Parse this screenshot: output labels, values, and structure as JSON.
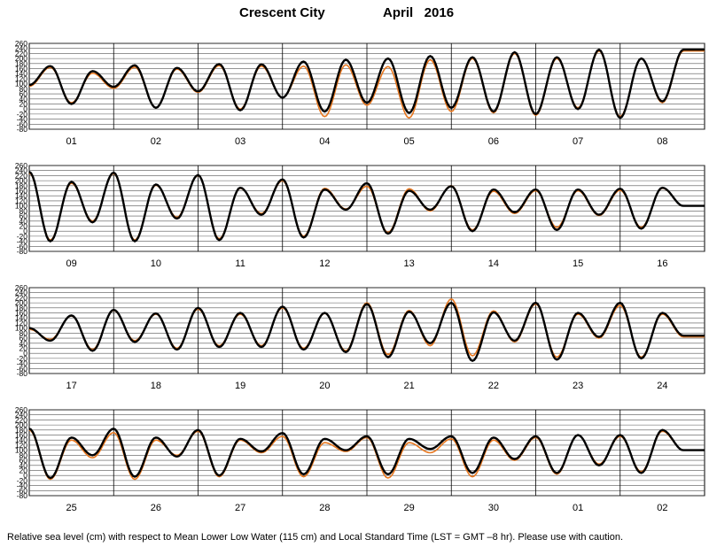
{
  "header": {
    "station": "Crescent City",
    "month_year": "April   2016"
  },
  "footer": {
    "note": "Relative sea level (cm) with respect to Mean Lower Low Water (115 cm) and Local Standard Time (LST = GMT –8 hr). Please use with caution."
  },
  "colors": {
    "observed": "#000000",
    "predicted": "#e87820"
  },
  "chart_data": {
    "type": "line",
    "title": "Crescent City April 2016",
    "ylim": [
      -80,
      260
    ],
    "ytick_values": [
      -80,
      -60,
      -40,
      -20,
      0,
      20,
      40,
      60,
      80,
      100,
      120,
      140,
      160,
      180,
      200,
      220,
      240,
      260
    ],
    "ytick_labels": [
      "-80",
      "-60",
      "-40",
      "-20",
      "0",
      "20",
      "40",
      "60",
      "80",
      "100",
      "120",
      "140",
      "160",
      "180",
      "200",
      "220",
      "240",
      "260"
    ],
    "x_unit": "day",
    "series": [],
    "panels": [
      {
        "day_labels": [
          "01",
          "02",
          "03",
          "04",
          "05",
          "06",
          "07",
          "08"
        ],
        "extrema_obs": [
          95,
          170,
          20,
          150,
          88,
          173,
          5,
          163,
          70,
          178,
          -5,
          177,
          45,
          188,
          -10,
          195,
          25,
          200,
          -15,
          210,
          5,
          205,
          -10,
          225,
          -20,
          205,
          0,
          235,
          -35,
          200,
          30,
          235
        ],
        "extrema_pred": [
          90,
          165,
          25,
          142,
          82,
          166,
          5,
          158,
          66,
          172,
          0,
          170,
          45,
          170,
          -30,
          175,
          15,
          168,
          -35,
          195,
          -10,
          200,
          -15,
          220,
          -25,
          200,
          5,
          230,
          -30,
          200,
          25,
          230
        ]
      },
      {
        "day_labels": [
          "09",
          "10",
          "11",
          "12",
          "13",
          "14",
          "15",
          "16"
        ],
        "extrema_obs": [
          235,
          -40,
          195,
          35,
          232,
          -40,
          185,
          50,
          222,
          -35,
          172,
          65,
          205,
          -25,
          165,
          85,
          190,
          -10,
          160,
          85,
          178,
          0,
          165,
          75,
          165,
          5,
          165,
          65,
          168,
          10,
          172,
          100
        ],
        "extrema_pred": [
          230,
          -35,
          190,
          40,
          228,
          -35,
          182,
          55,
          220,
          -30,
          170,
          70,
          200,
          -20,
          170,
          88,
          178,
          -5,
          168,
          80,
          180,
          5,
          158,
          70,
          160,
          15,
          160,
          62,
          162,
          15,
          170,
          100
        ]
      },
      {
        "day_labels": [
          "17",
          "18",
          "19",
          "20",
          "21",
          "22",
          "23",
          "24"
        ],
        "extrema_obs": [
          100,
          50,
          150,
          10,
          172,
          45,
          158,
          15,
          180,
          25,
          160,
          25,
          185,
          15,
          160,
          5,
          195,
          -15,
          165,
          40,
          200,
          -30,
          162,
          50,
          200,
          -25,
          160,
          65,
          200,
          -20,
          160,
          70
        ],
        "extrema_pred": [
          95,
          55,
          148,
          15,
          170,
          50,
          155,
          20,
          175,
          30,
          155,
          30,
          180,
          20,
          158,
          10,
          200,
          -5,
          170,
          30,
          215,
          -10,
          168,
          45,
          195,
          -15,
          155,
          60,
          190,
          -15,
          155,
          65
        ]
      },
      {
        "day_labels": [
          "25",
          "26",
          "27",
          "28",
          "29",
          "30",
          "01",
          "02"
        ],
        "extrema_obs": [
          185,
          -10,
          150,
          80,
          185,
          -5,
          150,
          75,
          180,
          0,
          145,
          95,
          168,
          5,
          145,
          100,
          155,
          5,
          145,
          105,
          155,
          10,
          150,
          65,
          155,
          10,
          160,
          40,
          160,
          10,
          180,
          100
        ],
        "extrema_pred": [
          180,
          -15,
          140,
          70,
          170,
          -15,
          140,
          80,
          175,
          -5,
          140,
          90,
          155,
          -5,
          130,
          95,
          150,
          -10,
          130,
          90,
          145,
          -5,
          140,
          60,
          150,
          5,
          160,
          45,
          155,
          15,
          175,
          100
        ]
      }
    ]
  }
}
